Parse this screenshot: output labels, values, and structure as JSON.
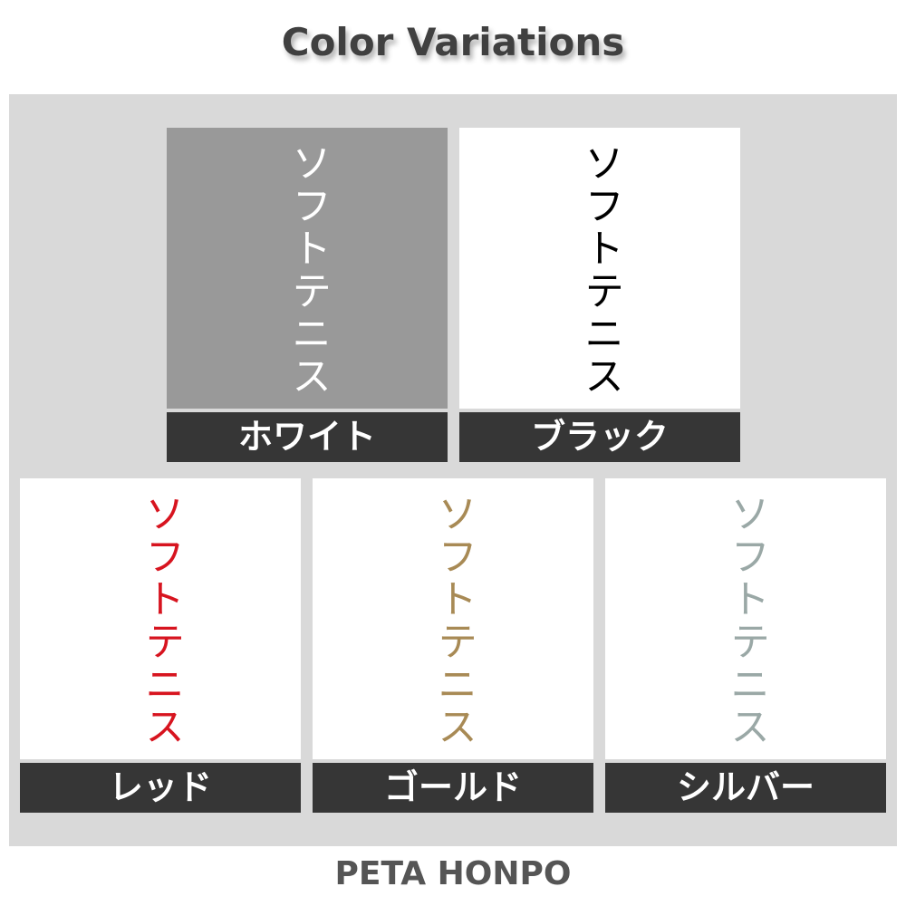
{
  "title": "Color Variations",
  "footer": "PETA HONPO",
  "variations": [
    {
      "text": "ソフトテニス",
      "label": "ホワイト",
      "text_color": "#ffffff",
      "bg_color": "#999999"
    },
    {
      "text": "ソフトテニス",
      "label": "ブラック",
      "text_color": "#000000",
      "bg_color": "#ffffff"
    },
    {
      "text": "ソフトテニス",
      "label": "レッド",
      "text_color": "#d7141f",
      "bg_color": "#ffffff"
    },
    {
      "text": "ソフトテニス",
      "label": "ゴールド",
      "text_color": "#a88a55",
      "bg_color": "#ffffff"
    },
    {
      "text": "ソフトテニス",
      "label": "シルバー",
      "text_color": "#9aa8a6",
      "bg_color": "#ffffff"
    }
  ]
}
